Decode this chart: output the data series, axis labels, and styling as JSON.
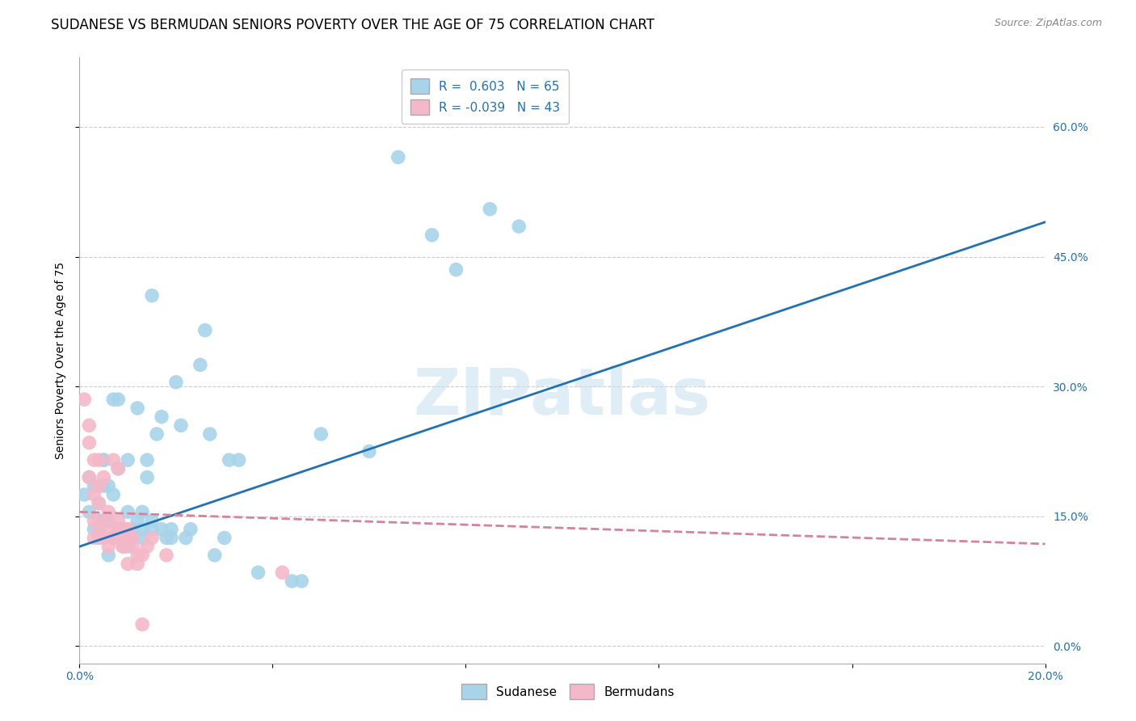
{
  "title": "SUDANESE VS BERMUDAN SENIORS POVERTY OVER THE AGE OF 75 CORRELATION CHART",
  "source": "Source: ZipAtlas.com",
  "ylabel": "Seniors Poverty Over the Age of 75",
  "xlim": [
    0.0,
    0.2
  ],
  "ylim": [
    -0.02,
    0.68
  ],
  "ytick_vals": [
    0.0,
    0.15,
    0.3,
    0.45,
    0.6
  ],
  "ytick_labels": [
    "0.0%",
    "15.0%",
    "30.0%",
    "45.0%",
    "60.0%"
  ],
  "xtick_vals": [
    0.0,
    0.04,
    0.08,
    0.12,
    0.16,
    0.2
  ],
  "xtick_labels": [
    "0.0%",
    "",
    "",
    "",
    "",
    "20.0%"
  ],
  "background_color": "#ffffff",
  "watermark": "ZIPatlas",
  "sudanese_color": "#a8d4ea",
  "bermuda_color": "#f4b8c8",
  "sudanese_line_color": "#2171b5",
  "bermuda_line_color": "#d4849a",
  "R_sudanese": 0.603,
  "N_sudanese": 65,
  "R_bermuda": -0.039,
  "N_bermuda": 43,
  "sudanese_points": [
    [
      0.001,
      0.175
    ],
    [
      0.002,
      0.155
    ],
    [
      0.002,
      0.195
    ],
    [
      0.003,
      0.185
    ],
    [
      0.003,
      0.135
    ],
    [
      0.004,
      0.165
    ],
    [
      0.004,
      0.145
    ],
    [
      0.004,
      0.125
    ],
    [
      0.005,
      0.185
    ],
    [
      0.005,
      0.145
    ],
    [
      0.005,
      0.215
    ],
    [
      0.005,
      0.215
    ],
    [
      0.006,
      0.185
    ],
    [
      0.006,
      0.105
    ],
    [
      0.006,
      0.145
    ],
    [
      0.007,
      0.125
    ],
    [
      0.007,
      0.175
    ],
    [
      0.007,
      0.285
    ],
    [
      0.008,
      0.205
    ],
    [
      0.008,
      0.135
    ],
    [
      0.008,
      0.285
    ],
    [
      0.009,
      0.125
    ],
    [
      0.009,
      0.135
    ],
    [
      0.01,
      0.155
    ],
    [
      0.01,
      0.215
    ],
    [
      0.01,
      0.115
    ],
    [
      0.011,
      0.135
    ],
    [
      0.011,
      0.125
    ],
    [
      0.012,
      0.145
    ],
    [
      0.012,
      0.275
    ],
    [
      0.013,
      0.155
    ],
    [
      0.013,
      0.125
    ],
    [
      0.013,
      0.135
    ],
    [
      0.014,
      0.195
    ],
    [
      0.014,
      0.215
    ],
    [
      0.015,
      0.145
    ],
    [
      0.015,
      0.135
    ],
    [
      0.015,
      0.405
    ],
    [
      0.016,
      0.245
    ],
    [
      0.017,
      0.265
    ],
    [
      0.017,
      0.135
    ],
    [
      0.018,
      0.125
    ],
    [
      0.019,
      0.135
    ],
    [
      0.019,
      0.125
    ],
    [
      0.02,
      0.305
    ],
    [
      0.021,
      0.255
    ],
    [
      0.022,
      0.125
    ],
    [
      0.023,
      0.135
    ],
    [
      0.025,
      0.325
    ],
    [
      0.026,
      0.365
    ],
    [
      0.027,
      0.245
    ],
    [
      0.028,
      0.105
    ],
    [
      0.03,
      0.125
    ],
    [
      0.031,
      0.215
    ],
    [
      0.033,
      0.215
    ],
    [
      0.037,
      0.085
    ],
    [
      0.044,
      0.075
    ],
    [
      0.046,
      0.075
    ],
    [
      0.05,
      0.245
    ],
    [
      0.06,
      0.225
    ],
    [
      0.066,
      0.565
    ],
    [
      0.073,
      0.475
    ],
    [
      0.078,
      0.435
    ],
    [
      0.085,
      0.505
    ],
    [
      0.091,
      0.485
    ]
  ],
  "bermuda_points": [
    [
      0.001,
      0.285
    ],
    [
      0.002,
      0.255
    ],
    [
      0.002,
      0.195
    ],
    [
      0.002,
      0.235
    ],
    [
      0.003,
      0.145
    ],
    [
      0.003,
      0.215
    ],
    [
      0.003,
      0.125
    ],
    [
      0.003,
      0.175
    ],
    [
      0.004,
      0.135
    ],
    [
      0.004,
      0.185
    ],
    [
      0.004,
      0.165
    ],
    [
      0.004,
      0.215
    ],
    [
      0.005,
      0.145
    ],
    [
      0.005,
      0.195
    ],
    [
      0.005,
      0.125
    ],
    [
      0.006,
      0.135
    ],
    [
      0.006,
      0.115
    ],
    [
      0.006,
      0.155
    ],
    [
      0.007,
      0.125
    ],
    [
      0.007,
      0.125
    ],
    [
      0.007,
      0.215
    ],
    [
      0.008,
      0.145
    ],
    [
      0.008,
      0.205
    ],
    [
      0.008,
      0.135
    ],
    [
      0.009,
      0.115
    ],
    [
      0.009,
      0.135
    ],
    [
      0.009,
      0.135
    ],
    [
      0.009,
      0.125
    ],
    [
      0.009,
      0.115
    ],
    [
      0.01,
      0.125
    ],
    [
      0.01,
      0.095
    ],
    [
      0.01,
      0.135
    ],
    [
      0.01,
      0.135
    ],
    [
      0.011,
      0.115
    ],
    [
      0.011,
      0.125
    ],
    [
      0.012,
      0.105
    ],
    [
      0.012,
      0.095
    ],
    [
      0.013,
      0.105
    ],
    [
      0.013,
      0.025
    ],
    [
      0.014,
      0.115
    ],
    [
      0.015,
      0.125
    ],
    [
      0.018,
      0.105
    ],
    [
      0.042,
      0.085
    ]
  ],
  "grid_color": "#cccccc",
  "title_fontsize": 12,
  "axis_label_fontsize": 10,
  "tick_fontsize": 10,
  "legend_fontsize": 11,
  "source_fontsize": 9
}
